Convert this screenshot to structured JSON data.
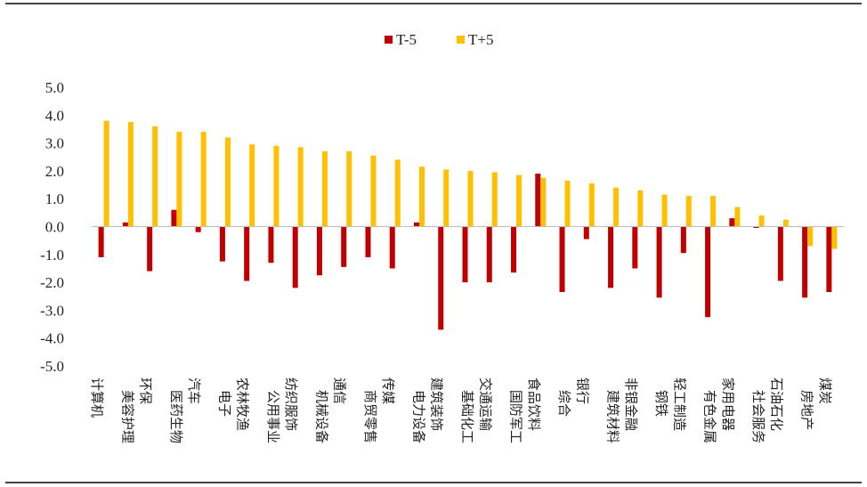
{
  "chart_data": {
    "type": "bar",
    "categories": [
      "计算机",
      "美容护理",
      "环保",
      "医药生物",
      "汽车",
      "电子",
      "农林牧渔",
      "公用事业",
      "纺织服饰",
      "机械设备",
      "通信",
      "商贸零售",
      "传媒",
      "电力设备",
      "建筑装饰",
      "基础化工",
      "交通运输",
      "国防军工",
      "食品饮料",
      "综合",
      "银行",
      "建筑材料",
      "非银金融",
      "钢铁",
      "轻工制造",
      "有色金属",
      "家用电器",
      "社会服务",
      "石油石化",
      "房地产",
      "煤炭"
    ],
    "series": [
      {
        "name": "T-5",
        "color": "#c00000",
        "values": [
          -1.1,
          0.15,
          -1.6,
          0.6,
          -0.2,
          -1.25,
          -1.95,
          -1.3,
          -2.2,
          -1.75,
          -1.45,
          -1.1,
          -1.5,
          0.15,
          -3.7,
          -2.0,
          -2.0,
          -1.65,
          1.9,
          -2.35,
          -0.45,
          -2.2,
          -1.5,
          -2.55,
          -0.95,
          -3.25,
          0.3,
          -0.05,
          -1.95,
          -2.55,
          -2.35
        ]
      },
      {
        "name": "T+5",
        "color": "#ffc000",
        "values": [
          3.8,
          3.75,
          3.6,
          3.4,
          3.4,
          3.2,
          2.95,
          2.9,
          2.85,
          2.7,
          2.7,
          2.55,
          2.4,
          2.15,
          2.05,
          2.0,
          1.95,
          1.85,
          1.75,
          1.65,
          1.55,
          1.4,
          1.3,
          1.15,
          1.1,
          1.1,
          0.7,
          0.4,
          0.25,
          -0.7,
          -0.8
        ]
      }
    ],
    "ylim": [
      -5.0,
      5.0
    ],
    "yticks": [
      "5.0",
      "4.0",
      "3.0",
      "2.0",
      "1.0",
      "0.0",
      "-1.0",
      "-2.0",
      "-3.0",
      "-4.0",
      "-5.0"
    ],
    "ytick_values": [
      5,
      4,
      3,
      2,
      1,
      0,
      -1,
      -2,
      -3,
      -4,
      -5
    ],
    "legend": {
      "position": "top-center",
      "items": [
        "T-5",
        "T+5"
      ]
    },
    "grid": false
  }
}
